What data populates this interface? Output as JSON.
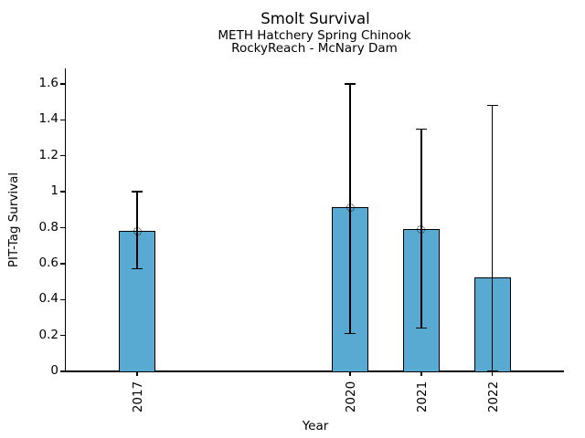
{
  "chart_data": {
    "type": "bar",
    "title": "Smolt Survival",
    "subtitle1": "METH Hatchery Spring Chinook",
    "subtitle2": "RockyReach - McNary Dam",
    "xlabel": "Year",
    "ylabel": "PIT-Tag Survival",
    "categories": [
      "2017",
      "2020",
      "2021",
      "2022"
    ],
    "x_numeric": [
      2017,
      2020,
      2021,
      2022
    ],
    "values": [
      0.78,
      0.91,
      0.79,
      0.52
    ],
    "error_low": [
      0.57,
      0.21,
      0.24,
      0.0
    ],
    "error_high": [
      1.0,
      1.6,
      1.35,
      1.48
    ],
    "point_marker_shown": [
      true,
      true,
      true,
      false
    ],
    "xlim": [
      2016,
      2023
    ],
    "ylim": [
      0,
      1.6
    ],
    "ytick_labels": [
      "0",
      "0.2",
      "0.4",
      "0.6",
      "0.8",
      "1",
      "1.2",
      "1.4",
      "1.6"
    ],
    "ytick_values": [
      0,
      0.2,
      0.4,
      0.6,
      0.8,
      1,
      1.2,
      1.4,
      1.6
    ],
    "grid": false,
    "legend": null,
    "bar_color": "#59aad3",
    "bar_edge_color": "#000000",
    "errorbar_color": "#000000",
    "text_color": "#000000"
  }
}
